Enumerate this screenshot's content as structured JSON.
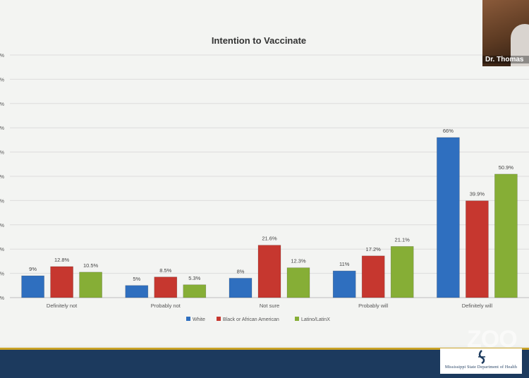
{
  "chart_data": {
    "type": "bar",
    "title": "Intention to Vaccinate",
    "categories": [
      "Definitely not",
      "Probably not",
      "Not sure",
      "Probably will",
      "Definitely will"
    ],
    "series": [
      {
        "name": "White",
        "values": [
          9,
          5,
          8,
          11,
          66
        ],
        "labels": [
          "9%",
          "5%",
          "8%",
          "11%",
          "66%"
        ],
        "color": "#2f6fbf"
      },
      {
        "name": "Black or African American",
        "values": [
          12.8,
          8.5,
          21.6,
          17.2,
          39.9
        ],
        "labels": [
          "12.8%",
          "8.5%",
          "21.6%",
          "17.2%",
          "39.9%"
        ],
        "color": "#c6372f"
      },
      {
        "name": "Latino/LatinX",
        "values": [
          10.5,
          5.3,
          12.3,
          21.1,
          50.9
        ],
        "labels": [
          "10.5%",
          "5.3%",
          "12.3%",
          "21.1%",
          "50.9%"
        ],
        "color": "#86ae36"
      }
    ],
    "ylim": [
      0,
      100
    ],
    "ytick_labels": [
      "%",
      "%",
      "%",
      "%",
      "%",
      "%",
      "%",
      "%",
      "%",
      "%",
      "%"
    ],
    "grid": true,
    "legend": "bottom"
  },
  "overlay": {
    "participant_name": "Dr. Thomas",
    "watermark": "ZOO",
    "logo_text": "Mississippi State Department of Health"
  },
  "colors": {
    "footer_blue": "#1c3a5e",
    "footer_gold": "#c9a227"
  }
}
